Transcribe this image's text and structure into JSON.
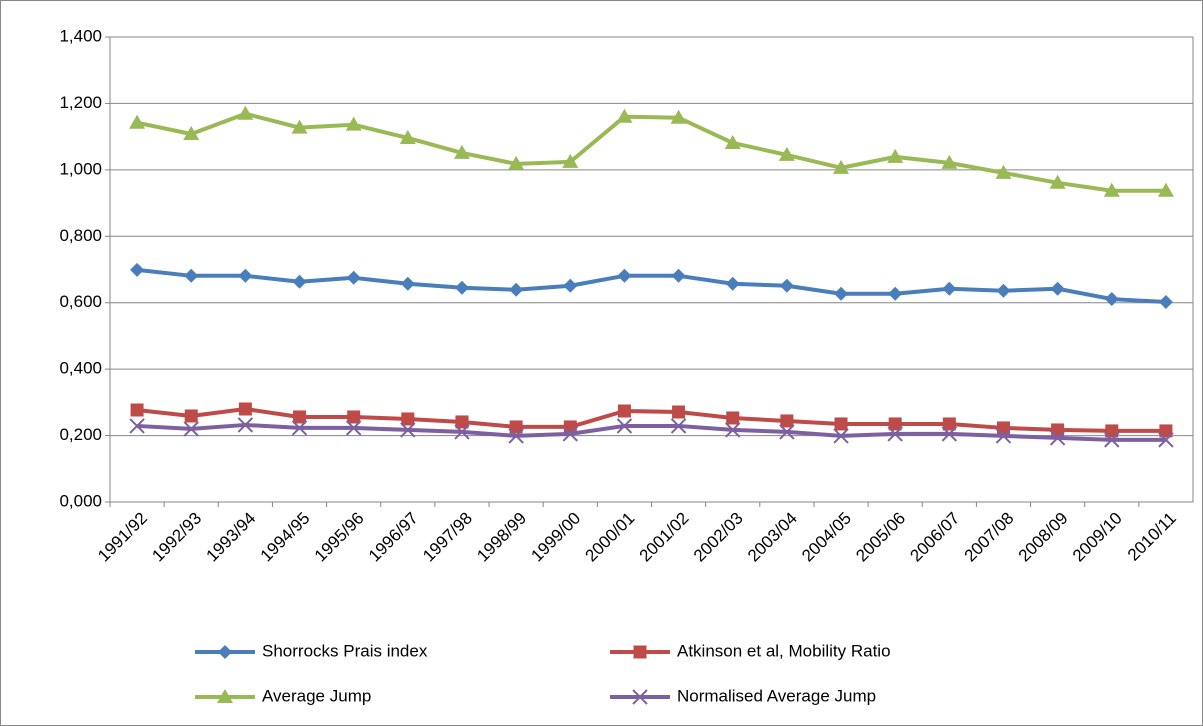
{
  "chart_data": {
    "type": "line",
    "categories": [
      "1991/92",
      "1992/93",
      "1993/94",
      "1994/95",
      "1995/96",
      "1996/97",
      "1997/98",
      "1998/99",
      "1999/00",
      "2000/01",
      "2001/02",
      "2002/03",
      "2003/04",
      "2004/05",
      "2005/06",
      "2006/07",
      "2007/08",
      "2008/09",
      "2009/10",
      "2010/11"
    ],
    "series": [
      {
        "name": "Shorrocks Prais index",
        "color": "#4a7ebb",
        "marker": "diamond",
        "values": [
          0.699,
          0.681,
          0.681,
          0.663,
          0.675,
          0.657,
          0.645,
          0.639,
          0.651,
          0.681,
          0.681,
          0.657,
          0.651,
          0.627,
          0.627,
          0.642,
          0.636,
          0.642,
          0.611,
          0.602
        ]
      },
      {
        "name": "Atkinson et al, Mobility Ratio",
        "color": "#be4b48",
        "marker": "square",
        "values": [
          0.277,
          0.259,
          0.28,
          0.256,
          0.256,
          0.25,
          0.241,
          0.226,
          0.226,
          0.274,
          0.271,
          0.253,
          0.244,
          0.235,
          0.235,
          0.235,
          0.223,
          0.217,
          0.214,
          0.214
        ]
      },
      {
        "name": "Average Jump",
        "color": "#98b954",
        "marker": "triangle",
        "values": [
          1.142,
          1.108,
          1.169,
          1.127,
          1.136,
          1.096,
          1.051,
          1.018,
          1.024,
          1.16,
          1.157,
          1.081,
          1.045,
          1.006,
          1.039,
          1.021,
          0.991,
          0.961,
          0.937,
          0.937
        ]
      },
      {
        "name": "Normalised Average Jump",
        "color": "#7d60a0",
        "marker": "x",
        "values": [
          0.229,
          0.22,
          0.232,
          0.223,
          0.223,
          0.217,
          0.211,
          0.199,
          0.205,
          0.229,
          0.229,
          0.217,
          0.211,
          0.199,
          0.205,
          0.205,
          0.199,
          0.193,
          0.187,
          0.187
        ]
      }
    ],
    "ylim": [
      0,
      1.4
    ],
    "yticks": [
      {
        "value": 0,
        "label": "0,000"
      },
      {
        "value": 0.2,
        "label": "0,200"
      },
      {
        "value": 0.4,
        "label": "0,400"
      },
      {
        "value": 0.6,
        "label": "0,600"
      },
      {
        "value": 0.8,
        "label": "0,800"
      },
      {
        "value": 1.0,
        "label": "1,000"
      },
      {
        "value": 1.2,
        "label": "1,200"
      },
      {
        "value": 1.4,
        "label": "1,400"
      }
    ],
    "grid": true,
    "legend": "bottom"
  }
}
